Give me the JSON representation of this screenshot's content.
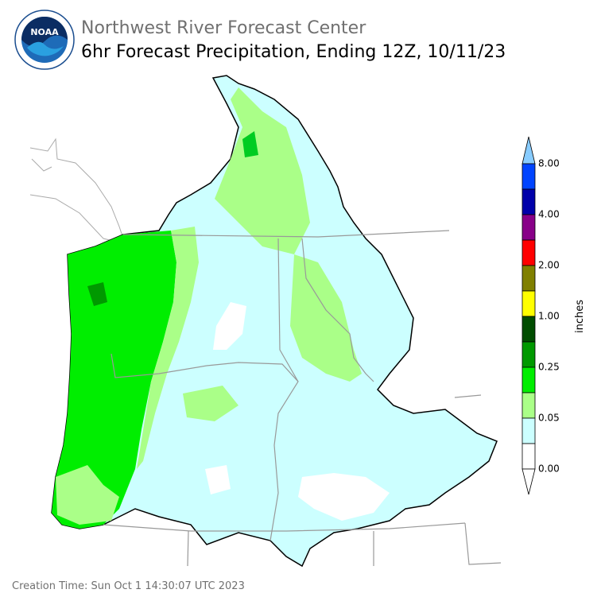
{
  "header": {
    "title": "Northwest River Forecast Center",
    "subtitle": "6hr Forecast Precipitation, Ending 12Z, 10/11/23",
    "logo": "NOAA"
  },
  "legend": {
    "unit": "inches",
    "ticks": [
      "0.00",
      "0.05",
      "0.25",
      "1.00",
      "2.00",
      "4.00",
      "8.00"
    ]
  },
  "footer": {
    "creation_time": "Creation Time: Sun Oct 1 14:30:07 UTC 2023"
  }
}
